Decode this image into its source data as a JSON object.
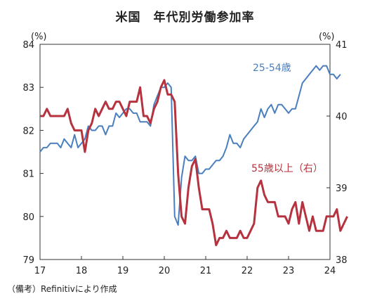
{
  "title": "米国　年代別労働参加率",
  "source_note": "（備考）Refinitivにより作成",
  "chart_data": {
    "type": "line",
    "title": "米国　年代別労働参加率",
    "xlabel": "",
    "x_ticks": [
      "17",
      "18",
      "19",
      "20",
      "21",
      "22",
      "23",
      "24"
    ],
    "x_range": [
      2017.0,
      2024.0
    ],
    "y_left": {
      "unit": "(%)",
      "ylim": [
        79,
        84
      ],
      "ticks": [
        "79",
        "80",
        "81",
        "82",
        "83",
        "84"
      ]
    },
    "y_right": {
      "unit": "(%)",
      "ylim": [
        38,
        41
      ],
      "ticks": [
        "38",
        "39",
        "40",
        "41"
      ]
    },
    "grid": false,
    "colors": {
      "series_25_54": "#4a7fbf",
      "series_55_plus": "#b5323e"
    },
    "series": [
      {
        "name": "25-54歳",
        "axis": "left",
        "start": 2017.0,
        "step_months": 1,
        "values": [
          81.5,
          81.6,
          81.6,
          81.7,
          81.7,
          81.7,
          81.6,
          81.8,
          81.7,
          81.6,
          81.9,
          81.6,
          81.7,
          81.8,
          82.1,
          82.0,
          82.0,
          82.1,
          82.1,
          81.9,
          82.1,
          82.1,
          82.4,
          82.3,
          82.4,
          82.5,
          82.5,
          82.4,
          82.4,
          82.2,
          82.2,
          82.2,
          82.1,
          82.6,
          82.8,
          83.0,
          83.0,
          83.1,
          83.0,
          80.0,
          79.8,
          80.9,
          81.4,
          81.3,
          81.3,
          81.4,
          81.0,
          81.0,
          81.1,
          81.1,
          81.2,
          81.3,
          81.3,
          81.4,
          81.6,
          81.9,
          81.7,
          81.7,
          81.6,
          81.8,
          81.9,
          82.0,
          82.1,
          82.2,
          82.5,
          82.3,
          82.5,
          82.6,
          82.4,
          82.6,
          82.6,
          82.5,
          82.4,
          82.5,
          82.5,
          82.8,
          83.1,
          83.2,
          83.3,
          83.4,
          83.5,
          83.4,
          83.5,
          83.5,
          83.3,
          83.3,
          83.2,
          83.3
        ]
      },
      {
        "name": "55歳以上（右）",
        "axis": "right",
        "start": 2017.0,
        "step_months": 1,
        "values": [
          40.0,
          40.0,
          40.1,
          40.0,
          40.0,
          40.0,
          40.0,
          40.0,
          40.1,
          39.9,
          39.8,
          39.8,
          39.8,
          39.5,
          39.8,
          39.9,
          40.1,
          40.0,
          40.1,
          40.2,
          40.1,
          40.1,
          40.2,
          40.2,
          40.1,
          40.0,
          40.2,
          40.2,
          40.2,
          40.4,
          40.0,
          40.0,
          39.9,
          40.1,
          40.2,
          40.4,
          40.5,
          40.3,
          40.3,
          40.2,
          39.2,
          38.6,
          38.5,
          39.0,
          39.3,
          39.4,
          39.0,
          38.7,
          38.7,
          38.7,
          38.5,
          38.2,
          38.3,
          38.3,
          38.4,
          38.3,
          38.3,
          38.3,
          38.4,
          38.3,
          38.3,
          38.4,
          38.5,
          39.0,
          39.1,
          38.9,
          38.8,
          38.8,
          38.8,
          38.6,
          38.6,
          38.6,
          38.5,
          38.7,
          38.8,
          38.5,
          38.8,
          38.6,
          38.4,
          38.6,
          38.4,
          38.4,
          38.4,
          38.6,
          38.6,
          38.6,
          38.7,
          38.4,
          38.5,
          38.6
        ]
      }
    ]
  },
  "labels": {
    "series_25_54": "25-54歳",
    "series_55_plus": "55歳以上（右）"
  }
}
